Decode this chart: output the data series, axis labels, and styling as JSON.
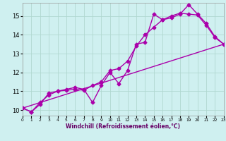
{
  "xlabel": "Windchill (Refroidissement éolien,°C)",
  "bg_color": "#cff0f0",
  "grid_color": "#b0d8d0",
  "line_color": "#aa00aa",
  "xmin": 0,
  "xmax": 23,
  "ymin": 9.7,
  "ymax": 15.7,
  "yticks": [
    10,
    11,
    12,
    13,
    14,
    15
  ],
  "xticks": [
    0,
    1,
    2,
    3,
    4,
    5,
    6,
    7,
    8,
    9,
    10,
    11,
    12,
    13,
    14,
    15,
    16,
    17,
    18,
    19,
    20,
    21,
    22,
    23
  ],
  "line1_x": [
    0,
    1,
    2,
    3,
    4,
    5,
    6,
    7,
    8,
    9,
    10,
    11,
    12,
    13,
    14,
    15,
    16,
    17,
    18,
    19,
    20,
    21,
    22,
    23
  ],
  "line1_y": [
    10.1,
    9.9,
    10.3,
    10.9,
    11.0,
    11.1,
    11.2,
    11.1,
    10.4,
    11.3,
    12.0,
    11.4,
    12.1,
    13.5,
    13.6,
    15.1,
    14.8,
    14.9,
    15.1,
    15.6,
    15.1,
    14.6,
    13.9,
    13.5
  ],
  "line2_x": [
    0,
    1,
    2,
    3,
    4,
    5,
    6,
    7,
    8,
    9,
    10,
    11,
    12,
    13,
    14,
    15,
    16,
    17,
    18,
    19,
    20,
    21,
    22,
    23
  ],
  "line2_y": [
    10.1,
    9.9,
    10.4,
    10.8,
    11.0,
    11.05,
    11.1,
    11.05,
    11.3,
    11.5,
    12.1,
    12.2,
    12.6,
    13.4,
    14.0,
    14.4,
    14.8,
    15.0,
    15.15,
    15.1,
    15.05,
    14.5,
    13.85,
    13.5
  ],
  "line3_x": [
    0,
    23
  ],
  "line3_y": [
    10.1,
    13.5
  ],
  "markersize": 2.5,
  "linewidth": 1.0
}
